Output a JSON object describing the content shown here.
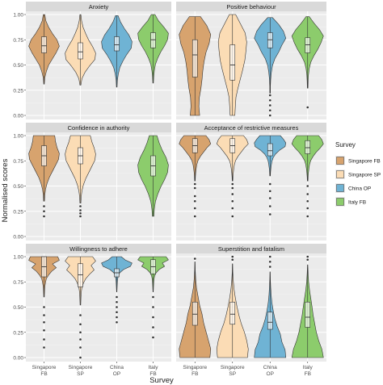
{
  "chart_data": {
    "type": "violin",
    "xlabel": "Survey",
    "ylabel": "Normalised scores",
    "ylim": [
      0,
      1
    ],
    "y_ticks": [
      "0.00",
      "0.25",
      "0.50",
      "0.75",
      "1.00"
    ],
    "categories": [
      "Singapore FB",
      "Singapore SP",
      "China OP",
      "Italy FB"
    ],
    "x_tick_labels": [
      {
        "line1": "Singapore",
        "line2": "FB"
      },
      {
        "line1": "Singapore",
        "line2": "SP"
      },
      {
        "line1": "China",
        "line2": "OP"
      },
      {
        "line1": "Italy",
        "line2": "FB"
      }
    ],
    "colors": {
      "Singapore FB": "#d7a36e",
      "Singapore SP": "#fbdcb5",
      "China OP": "#6fb3d4",
      "Italy FB": "#8ccc6c"
    },
    "legend": {
      "title": "Survey",
      "position": "right",
      "entries": [
        "Singapore FB",
        "Singapore SP",
        "China OP",
        "Italy FB"
      ]
    },
    "grid": true,
    "panels": [
      {
        "title": "Anxiety",
        "series": [
          {
            "name": "Singapore FB",
            "min": 0.31,
            "max": 1.0,
            "q1": 0.62,
            "median": 0.69,
            "q3": 0.78,
            "outliers": [],
            "shape": [
              0.02,
              0.05,
              0.15,
              0.3,
              0.55,
              0.8,
              1.0,
              0.85,
              0.55,
              0.3,
              0.12,
              0.05
            ]
          },
          {
            "name": "Singapore SP",
            "min": 0.3,
            "max": 1.0,
            "q1": 0.56,
            "median": 0.63,
            "q3": 0.72,
            "outliers": [],
            "shape": [
              0.03,
              0.1,
              0.3,
              0.6,
              0.95,
              1.0,
              0.8,
              0.55,
              0.35,
              0.18,
              0.08,
              0.03
            ]
          },
          {
            "name": "China OP",
            "min": 0.28,
            "max": 0.99,
            "q1": 0.64,
            "median": 0.7,
            "q3": 0.78,
            "outliers": [],
            "shape": [
              0.02,
              0.04,
              0.1,
              0.2,
              0.4,
              0.65,
              0.95,
              1.0,
              0.8,
              0.5,
              0.25,
              0.08
            ]
          },
          {
            "name": "Italy FB",
            "min": 0.32,
            "max": 1.0,
            "q1": 0.67,
            "median": 0.75,
            "q3": 0.82,
            "outliers": [],
            "shape": [
              0.02,
              0.04,
              0.08,
              0.15,
              0.3,
              0.5,
              0.75,
              0.95,
              1.0,
              0.7,
              0.35,
              0.12
            ]
          }
        ]
      },
      {
        "title": "Positive behaviour",
        "series": [
          {
            "name": "Singapore FB",
            "min": 0.0,
            "max": 0.98,
            "q1": 0.38,
            "median": 0.6,
            "q3": 0.75,
            "outliers": [],
            "shape": [
              0.3,
              0.25,
              0.28,
              0.38,
              0.45,
              0.5,
              0.58,
              0.7,
              0.9,
              1.0,
              0.75,
              0.35
            ]
          },
          {
            "name": "Singapore SP",
            "min": 0.0,
            "max": 1.0,
            "q1": 0.35,
            "median": 0.5,
            "q3": 0.7,
            "outliers": [],
            "shape": [
              0.15,
              0.18,
              0.22,
              0.35,
              0.5,
              0.65,
              0.78,
              0.85,
              0.9,
              0.8,
              0.5,
              0.2
            ]
          },
          {
            "name": "China OP",
            "min": 0.22,
            "max": 0.97,
            "q1": 0.67,
            "median": 0.75,
            "q3": 0.82,
            "outliers": [
              0.0,
              0.05,
              0.1,
              0.15,
              0.2
            ],
            "shape": [
              0.02,
              0.02,
              0.04,
              0.08,
              0.15,
              0.3,
              0.55,
              0.75,
              1.0,
              0.85,
              0.55,
              0.15
            ]
          },
          {
            "name": "Italy FB",
            "min": 0.27,
            "max": 0.98,
            "q1": 0.62,
            "median": 0.7,
            "q3": 0.77,
            "outliers": [
              0.08
            ],
            "shape": [
              0.02,
              0.03,
              0.05,
              0.1,
              0.2,
              0.4,
              0.65,
              0.85,
              1.0,
              0.75,
              0.4,
              0.1
            ]
          }
        ]
      },
      {
        "title": "Confidence in authority",
        "series": [
          {
            "name": "Singapore FB",
            "min": 0.35,
            "max": 1.0,
            "q1": 0.7,
            "median": 0.8,
            "q3": 0.9,
            "outliers": [
              0.2,
              0.25,
              0.3
            ],
            "shape": [
              0.03,
              0.05,
              0.1,
              0.2,
              0.35,
              0.55,
              0.75,
              0.95,
              1.0,
              0.85,
              0.75,
              0.7
            ]
          },
          {
            "name": "Singapore SP",
            "min": 0.33,
            "max": 1.0,
            "q1": 0.72,
            "median": 0.8,
            "q3": 0.88,
            "outliers": [
              0.2,
              0.23,
              0.26,
              0.3
            ],
            "shape": [
              0.03,
              0.05,
              0.1,
              0.2,
              0.35,
              0.55,
              0.75,
              0.95,
              1.0,
              0.9,
              0.75,
              0.65
            ]
          },
          {
            "name": "Italy FB",
            "min": 0.2,
            "max": 1.0,
            "q1": 0.6,
            "median": 0.7,
            "q3": 0.8,
            "outliers": [],
            "shape": [
              0.05,
              0.08,
              0.15,
              0.3,
              0.5,
              0.75,
              0.95,
              1.0,
              0.85,
              0.6,
              0.4,
              0.25
            ]
          }
        ]
      },
      {
        "title": "Acceptance of restrictive measures",
        "series": [
          {
            "name": "Singapore FB",
            "min": 0.55,
            "max": 1.0,
            "q1": 0.83,
            "median": 0.9,
            "q3": 0.97,
            "outliers": [
              0.2,
              0.28,
              0.35,
              0.4,
              0.48,
              0.52
            ],
            "shape": [
              0.02,
              0.03,
              0.05,
              0.08,
              0.12,
              0.2,
              0.35,
              0.55,
              0.75,
              1.0,
              0.9,
              0.7
            ]
          },
          {
            "name": "Singapore SP",
            "min": 0.55,
            "max": 1.0,
            "q1": 0.83,
            "median": 0.9,
            "q3": 0.97,
            "outliers": [
              0.2,
              0.28,
              0.35,
              0.42,
              0.48,
              0.52
            ],
            "shape": [
              0.02,
              0.03,
              0.05,
              0.08,
              0.12,
              0.2,
              0.35,
              0.55,
              0.75,
              1.0,
              0.9,
              0.7
            ]
          },
          {
            "name": "China OP",
            "min": 0.6,
            "max": 1.0,
            "q1": 0.8,
            "median": 0.85,
            "q3": 0.92,
            "outliers": [
              0.22,
              0.3,
              0.38,
              0.45,
              0.52
            ],
            "shape": [
              0.02,
              0.03,
              0.05,
              0.08,
              0.12,
              0.2,
              0.35,
              0.6,
              0.95,
              1.0,
              0.85,
              0.65
            ]
          },
          {
            "name": "Italy FB",
            "min": 0.55,
            "max": 1.0,
            "q1": 0.82,
            "median": 0.88,
            "q3": 0.95,
            "outliers": [
              0.2,
              0.28,
              0.35,
              0.42,
              0.5
            ],
            "shape": [
              0.02,
              0.03,
              0.05,
              0.08,
              0.12,
              0.2,
              0.35,
              0.55,
              0.8,
              1.0,
              0.9,
              0.7
            ]
          }
        ]
      },
      {
        "title": "Willingness to adhere",
        "series": [
          {
            "name": "Singapore FB",
            "min": 0.6,
            "max": 1.0,
            "q1": 0.8,
            "median": 0.9,
            "q3": 1.0,
            "outliers": [
              0.1,
              0.18,
              0.27,
              0.35,
              0.42,
              0.5
            ],
            "shape": [
              0.02,
              0.03,
              0.04,
              0.06,
              0.1,
              0.15,
              0.3,
              0.5,
              0.8,
              0.55,
              1.0,
              0.9
            ]
          },
          {
            "name": "Singapore SP",
            "min": 0.52,
            "max": 1.0,
            "q1": 0.7,
            "median": 0.82,
            "q3": 0.93,
            "outliers": [
              0.0,
              0.1,
              0.18,
              0.25,
              0.33,
              0.42
            ],
            "shape": [
              0.02,
              0.03,
              0.04,
              0.06,
              0.1,
              0.2,
              0.35,
              0.6,
              0.9,
              0.7,
              1.0,
              0.8
            ]
          },
          {
            "name": "China OP",
            "min": 0.65,
            "max": 1.0,
            "q1": 0.8,
            "median": 0.84,
            "q3": 0.88,
            "outliers": [
              0.35,
              0.4,
              0.45,
              0.5,
              0.55,
              0.6
            ],
            "shape": [
              0.01,
              0.02,
              0.03,
              0.04,
              0.06,
              0.1,
              0.2,
              0.45,
              0.9,
              1.0,
              0.55,
              0.3
            ]
          },
          {
            "name": "Italy FB",
            "min": 0.65,
            "max": 1.0,
            "q1": 0.83,
            "median": 0.9,
            "q3": 0.97,
            "outliers": [
              0.2,
              0.3,
              0.4,
              0.5,
              0.6
            ],
            "shape": [
              0.01,
              0.02,
              0.03,
              0.04,
              0.06,
              0.1,
              0.2,
              0.4,
              0.75,
              0.6,
              1.0,
              0.85
            ]
          }
        ]
      },
      {
        "title": "Superstition and fatalism",
        "series": [
          {
            "name": "Singapore FB",
            "min": 0.0,
            "max": 0.95,
            "q1": 0.32,
            "median": 0.43,
            "q3": 0.55,
            "outliers": [
              0.98
            ],
            "shape": [
              0.95,
              1.0,
              0.85,
              0.7,
              0.55,
              0.45,
              0.3,
              0.2,
              0.1,
              0.05,
              0.02,
              0.01
            ]
          },
          {
            "name": "Singapore SP",
            "min": 0.0,
            "max": 0.93,
            "q1": 0.33,
            "median": 0.43,
            "q3": 0.55,
            "outliers": [
              0.97,
              1.0
            ],
            "shape": [
              0.95,
              1.0,
              0.9,
              0.75,
              0.55,
              0.4,
              0.28,
              0.18,
              0.1,
              0.05,
              0.02,
              0.01
            ]
          },
          {
            "name": "China OP",
            "min": 0.0,
            "max": 0.85,
            "q1": 0.28,
            "median": 0.35,
            "q3": 0.45,
            "outliers": [
              0.9,
              0.95,
              1.0
            ],
            "shape": [
              1.0,
              0.95,
              0.75,
              0.65,
              0.45,
              0.3,
              0.2,
              0.12,
              0.07,
              0.04,
              0.02,
              0.01
            ]
          },
          {
            "name": "Italy FB",
            "min": 0.0,
            "max": 0.92,
            "q1": 0.3,
            "median": 0.4,
            "q3": 0.55,
            "outliers": [
              0.97,
              1.0
            ],
            "shape": [
              1.0,
              0.9,
              0.7,
              0.55,
              0.45,
              0.35,
              0.28,
              0.2,
              0.12,
              0.06,
              0.03,
              0.01
            ]
          }
        ]
      }
    ]
  }
}
